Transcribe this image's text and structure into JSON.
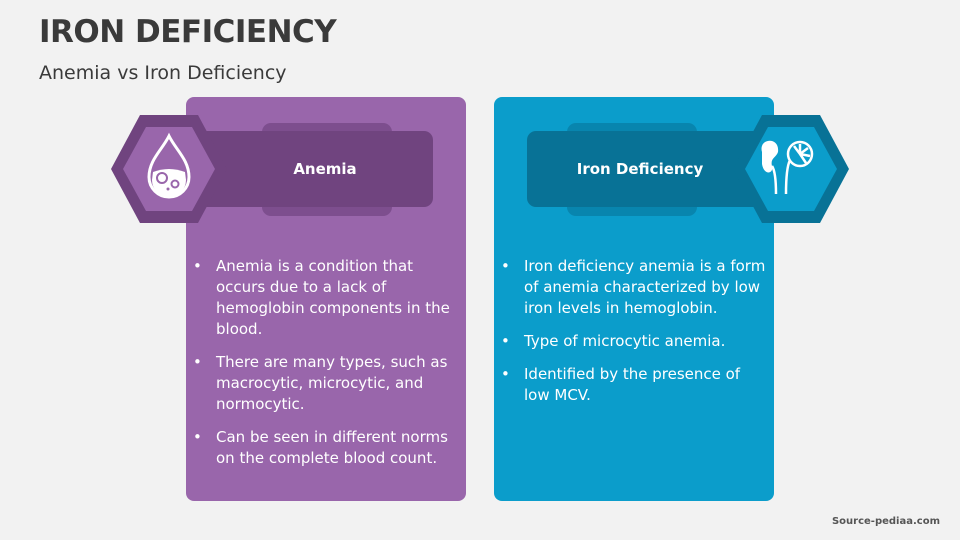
{
  "title": "IRON DEFICIENCY",
  "subtitle": "Anemia vs Iron Deficiency",
  "colors": {
    "purple": "#9966ab",
    "purple_dark": "#70447f",
    "blue": "#0b9dcb",
    "blue_dark": "#087296"
  },
  "left": {
    "heading": "Anemia",
    "icon": "blood-drop-icon",
    "points": [
      "Anemia is a condition that occurs due to a lack of hemoglobin components in the blood.",
      "There are many types, such as macrocytic, microcytic, and normocytic.",
      "Can be seen in different norms on the complete blood count."
    ]
  },
  "right": {
    "heading": "Iron Deficiency",
    "icon": "kidney-icon",
    "points": [
      "Iron deficiency anemia is a form of anemia characterized by low iron levels in hemoglobin.",
      "Type of microcytic anemia.",
      "Identified by the presence of low MCV."
    ]
  },
  "source": "Source-pediaa.com"
}
